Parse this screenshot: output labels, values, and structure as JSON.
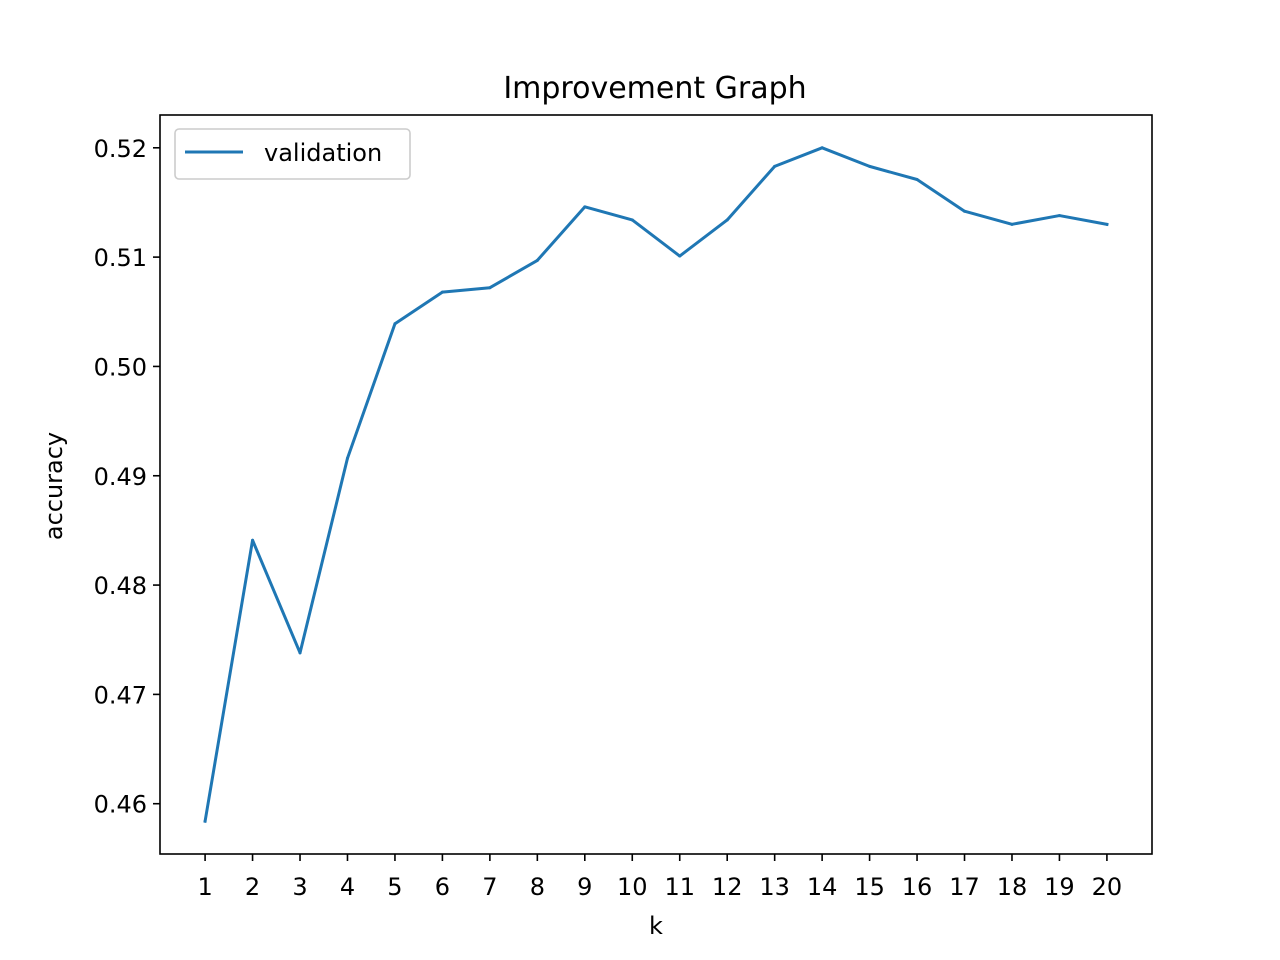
{
  "chart_data": {
    "type": "line",
    "title": "Improvement Graph",
    "xlabel": "k",
    "ylabel": "accuracy",
    "x": [
      1,
      2,
      3,
      4,
      5,
      6,
      7,
      8,
      9,
      10,
      11,
      12,
      13,
      14,
      15,
      16,
      17,
      18,
      19,
      20
    ],
    "x_ticks": [
      "1",
      "2",
      "3",
      "4",
      "5",
      "6",
      "7",
      "8",
      "9",
      "10",
      "11",
      "12",
      "13",
      "14",
      "15",
      "16",
      "17",
      "18",
      "19",
      "20"
    ],
    "y_ticks": [
      "0.46",
      "0.47",
      "0.48",
      "0.49",
      "0.50",
      "0.51",
      "0.52"
    ],
    "y_tick_values": [
      0.46,
      0.47,
      0.48,
      0.49,
      0.5,
      0.51,
      0.52
    ],
    "xlim": [
      0.05,
      20.95
    ],
    "ylim": [
      0.4554,
      0.523
    ],
    "series": [
      {
        "name": "validation",
        "color": "#1f77b4",
        "values": [
          0.4584,
          0.4841,
          0.4738,
          0.4916,
          0.5039,
          0.5068,
          0.5072,
          0.5097,
          0.5146,
          0.5134,
          0.5101,
          0.5134,
          0.5183,
          0.52,
          0.5183,
          0.5171,
          0.5142,
          0.513,
          0.5138,
          0.513
        ]
      }
    ],
    "legend": {
      "position": "upper-left"
    },
    "grid": false
  }
}
